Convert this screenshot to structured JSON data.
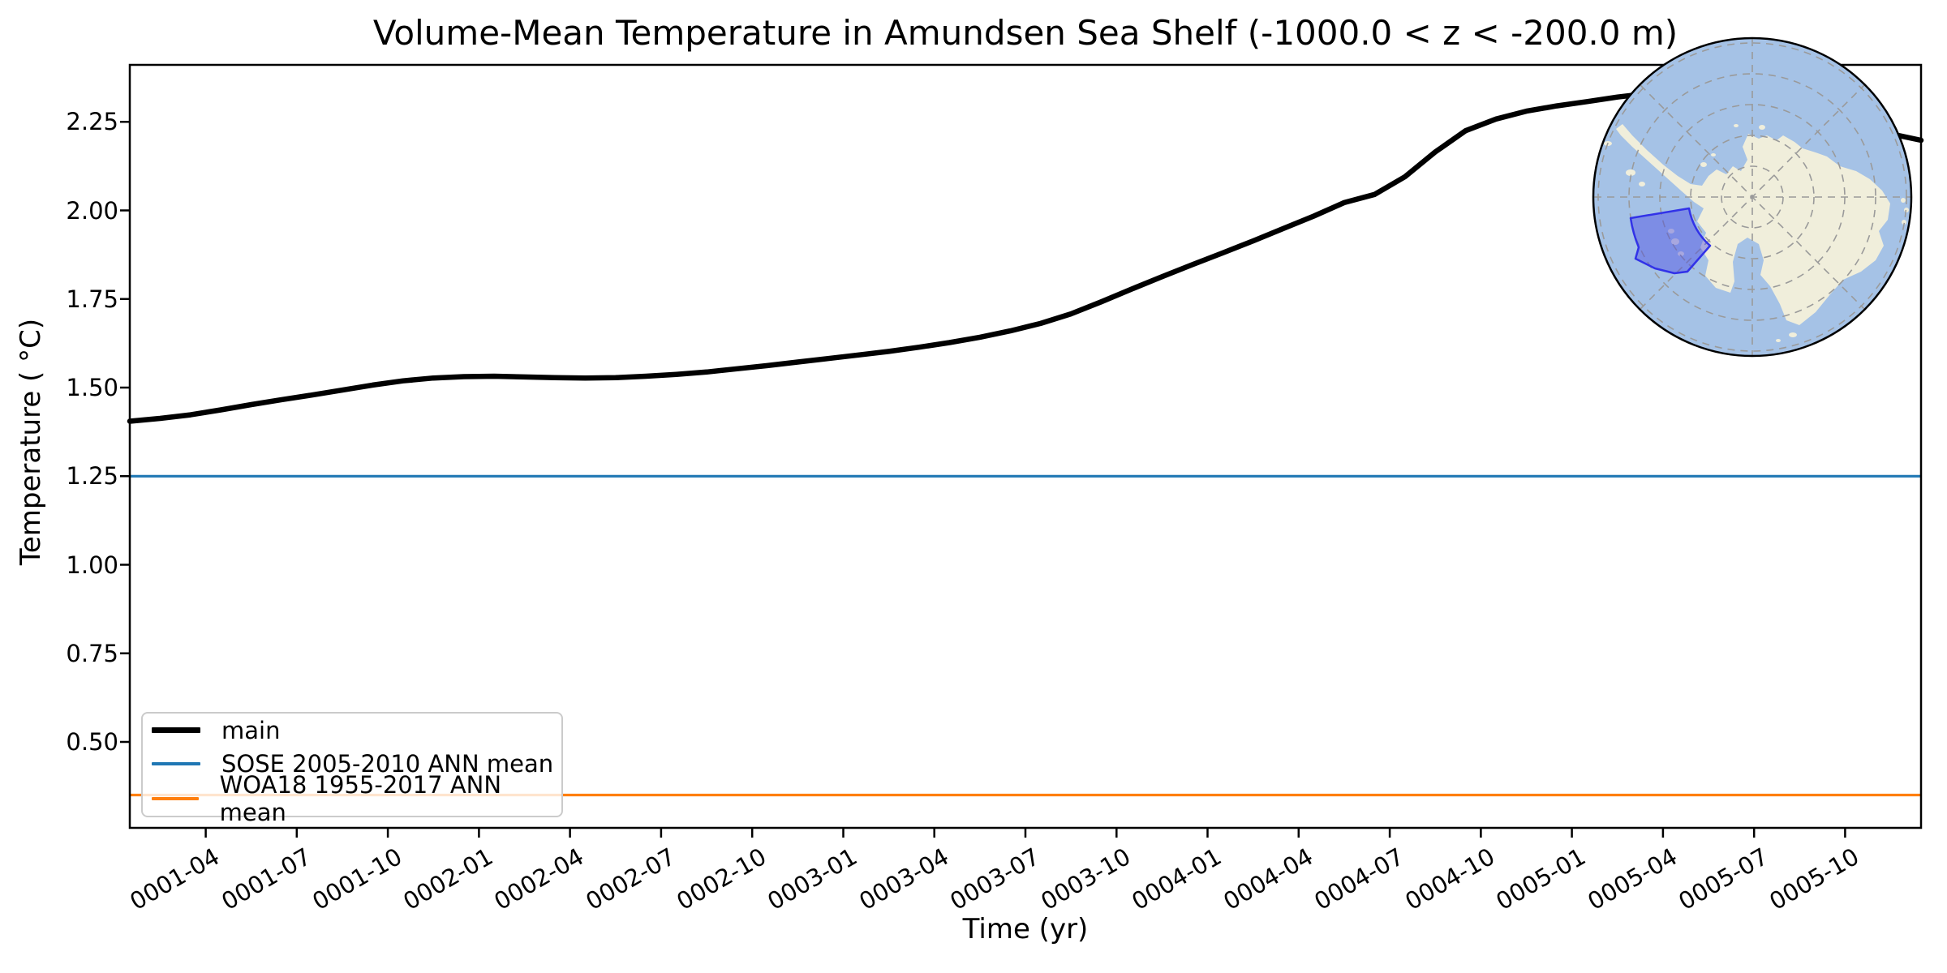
{
  "title": "Volume-Mean Temperature in Amundsen Sea Shelf (-1000.0 < z < -200.0 m)",
  "axes": {
    "xlabel": "Time (yr)",
    "ylabel": "Temperature ( °C)",
    "yticks": [
      "2.25",
      "2.00",
      "1.75",
      "1.50",
      "1.25",
      "1.00",
      "0.75",
      "0.50"
    ],
    "xticks": [
      "0001-04",
      "0001-07",
      "0001-10",
      "0002-01",
      "0002-04",
      "0002-07",
      "0002-10",
      "0003-01",
      "0003-04",
      "0003-07",
      "0003-10",
      "0004-01",
      "0004-04",
      "0004-07",
      "0004-10",
      "0005-01",
      "0005-04",
      "0005-07",
      "0005-10"
    ]
  },
  "legend": {
    "items": [
      {
        "label": "main",
        "color": "#000000",
        "linewidth": 7
      },
      {
        "label": "SOSE 2005-2010 ANN mean",
        "color": "#1f77b4",
        "linewidth": 4
      },
      {
        "label": "WOA18 1955-2017 ANN mean",
        "color": "#ff7f0e",
        "linewidth": 4
      }
    ],
    "position": "lower left"
  },
  "chart_data": {
    "type": "line",
    "title": "Volume-Mean Temperature in Amundsen Sea Shelf (-1000.0 < z < -200.0 m)",
    "xlabel": "Time (yr)",
    "ylabel": "Temperature ( °C)",
    "x_unit": "monthly means, mid-month, 0001-01 through 0005-12",
    "xtick_labels": [
      "0001-04",
      "0001-07",
      "0001-10",
      "0002-01",
      "0002-04",
      "0002-07",
      "0002-10",
      "0003-01",
      "0003-04",
      "0003-07",
      "0003-10",
      "0004-01",
      "0004-04",
      "0004-07",
      "0004-10",
      "0005-01",
      "0005-04",
      "0005-07",
      "0005-10"
    ],
    "ytick_values": [
      0.5,
      0.75,
      1.0,
      1.25,
      1.5,
      1.75,
      2.0,
      2.25
    ],
    "ylim": [
      0.26,
      2.41
    ],
    "grid": false,
    "legend_position": "lower left",
    "series": [
      {
        "name": "main",
        "type": "line",
        "color": "#000000",
        "values": [
          1.405,
          1.413,
          1.423,
          1.437,
          1.452,
          1.466,
          1.479,
          1.493,
          1.507,
          1.519,
          1.527,
          1.531,
          1.532,
          1.53,
          1.528,
          1.527,
          1.528,
          1.532,
          1.537,
          1.544,
          1.553,
          1.562,
          1.572,
          1.582,
          1.592,
          1.602,
          1.614,
          1.627,
          1.642,
          1.66,
          1.681,
          1.708,
          1.742,
          1.778,
          1.813,
          1.847,
          1.88,
          1.914,
          1.949,
          1.984,
          2.022,
          2.045,
          2.095,
          2.165,
          2.225,
          2.258,
          2.28,
          2.295,
          2.307,
          2.32,
          2.33,
          2.335,
          2.331,
          2.32,
          2.303,
          2.282,
          2.26,
          2.238,
          2.216,
          2.198
        ]
      },
      {
        "name": "SOSE 2005-2010 ANN mean",
        "type": "hline",
        "color": "#1f77b4",
        "value": 1.25
      },
      {
        "name": "WOA18 1955-2017 ANN mean",
        "type": "hline",
        "color": "#ff7f0e",
        "value": 0.35
      }
    ]
  },
  "inset_map": {
    "region_label": "Amundsen Sea Shelf",
    "ocean_color": "#a5c2e6",
    "land_color": "#f0eedb",
    "graticule_color": "#9a9a9a",
    "border_color": "#000000",
    "highlight_fill_color": "#4646e4",
    "highlight_fill_opacity": "0.42",
    "highlight_edge_color": "#3232e8"
  }
}
